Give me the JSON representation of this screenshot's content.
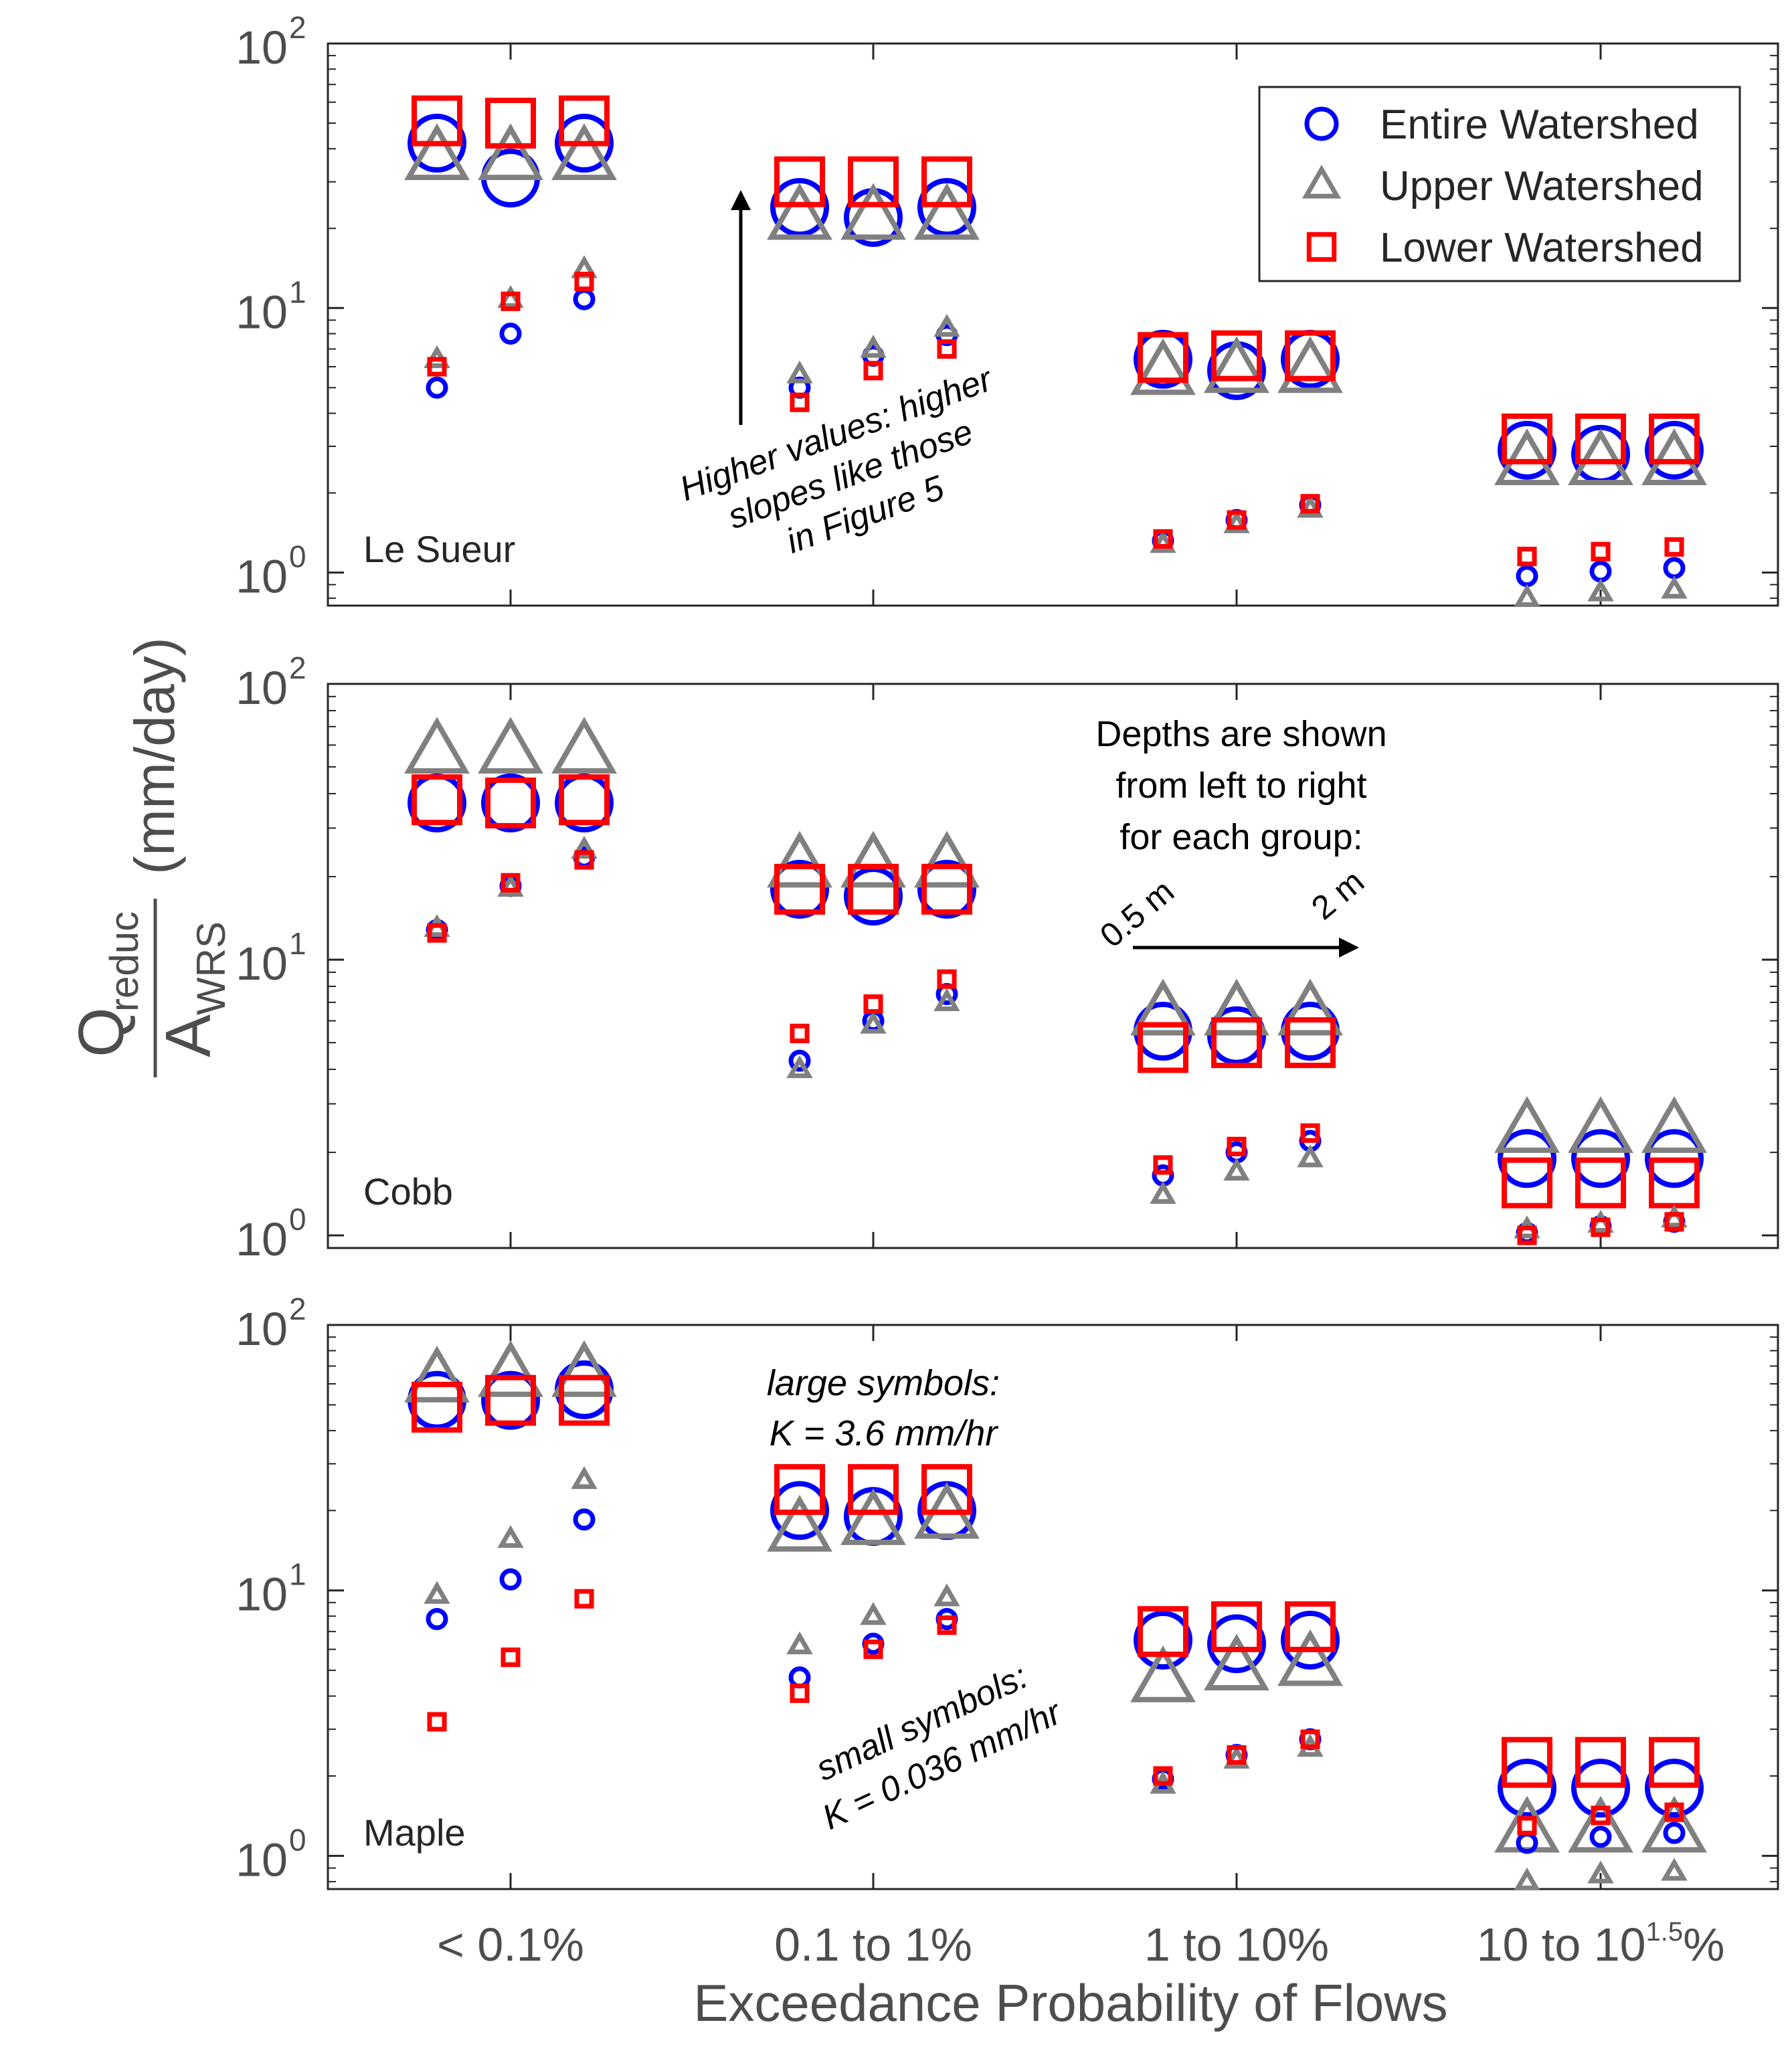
{
  "figure": {
    "xlabel": "Exceedance Probability of Flows",
    "ylabel": {
      "numerator_main": "Q",
      "numerator_sub": "reduc",
      "denominator_main": "A",
      "denominator_sub": "WRS",
      "units": "(mm/day)"
    }
  },
  "legend": {
    "items": [
      {
        "label": "Entire Watershed",
        "marker": "circle",
        "color": "#0000ff"
      },
      {
        "label": "Upper Watershed",
        "marker": "triangle",
        "color": "#808080"
      },
      {
        "label": "Lower Watershed",
        "marker": "square",
        "color": "#ff0000"
      }
    ]
  },
  "annotations": {
    "higher_values": [
      "Higher values: higher",
      "slopes like those",
      "in Figure 5"
    ],
    "depths": [
      "Depths are shown",
      "from left to right",
      "for each group:"
    ],
    "depth_start": "0.5 m",
    "depth_end": "2 m",
    "large_symbols": [
      "large symbols:",
      "K = 3.6 mm/hr"
    ],
    "small_symbols": [
      "small symbols:",
      "K = 0.036 mm/hr"
    ]
  },
  "colors": {
    "entire": "#0000ff",
    "upper": "#808080",
    "lower": "#ff0000",
    "axis": "#262626",
    "tick_label": "#4d4d4d"
  },
  "chart_data": [
    {
      "type": "scatter",
      "title": "Le Sueur",
      "yscale": "log",
      "ylim": [
        0.75,
        100
      ],
      "y_ticks": [
        {
          "base": "10",
          "exp": "0"
        },
        {
          "base": "10",
          "exp": "1"
        },
        {
          "base": "10",
          "exp": "2"
        }
      ],
      "categories": [
        {
          "label": "< 0.1%"
        },
        {
          "label": "0.1 to 1%"
        },
        {
          "label": "1 to 10%"
        },
        {
          "label": "10 to 10",
          "sup": "1.5",
          "suffix": "%"
        }
      ],
      "depths_m": [
        0.5,
        1.25,
        2
      ],
      "series": [
        {
          "name": "Entire Watershed",
          "k": "3.6 mm/hr",
          "values": [
            [
              42,
              31,
              42
            ],
            [
              24,
              22,
              24
            ],
            [
              6.4,
              5.8,
              6.4
            ],
            [
              2.9,
              2.8,
              2.9
            ]
          ]
        },
        {
          "name": "Entire Watershed",
          "k": "0.036 mm/hr",
          "values": [
            [
              5.0,
              8.0,
              10.8
            ],
            [
              5.0,
              6.6,
              7.9
            ],
            [
              1.32,
              1.58,
              1.8
            ],
            [
              0.97,
              1.01,
              1.04
            ]
          ]
        },
        {
          "name": "Upper Watershed",
          "k": "3.6 mm/hr",
          "values": [
            [
              37,
              37,
              37
            ],
            [
              22,
              22,
              22
            ],
            [
              5.7,
              5.8,
              5.8
            ],
            [
              2.6,
              2.6,
              2.6
            ]
          ]
        },
        {
          "name": "Upper Watershed",
          "k": "0.036 mm/hr",
          "values": [
            [
              6.4,
              10.8,
              14.0
            ],
            [
              5.6,
              7.0,
              8.4
            ],
            [
              1.28,
              1.52,
              1.74
            ],
            [
              0.8,
              0.84,
              0.86
            ]
          ]
        },
        {
          "name": "Lower Watershed",
          "k": "3.6 mm/hr",
          "values": [
            [
              51,
              50,
              51
            ],
            [
              30,
              30,
              30
            ],
            [
              6.5,
              6.6,
              6.6
            ],
            [
              3.2,
              3.2,
              3.2
            ]
          ]
        },
        {
          "name": "Lower Watershed",
          "k": "0.036 mm/hr",
          "values": [
            [
              6.0,
              10.6,
              12.6
            ],
            [
              4.4,
              5.8,
              7.0
            ],
            [
              1.34,
              1.58,
              1.82
            ],
            [
              1.15,
              1.2,
              1.25
            ]
          ]
        }
      ]
    },
    {
      "type": "scatter",
      "title": "Cobb",
      "yscale": "log",
      "ylim": [
        0.9,
        100
      ],
      "y_ticks": [
        {
          "base": "10",
          "exp": "0"
        },
        {
          "base": "10",
          "exp": "1"
        },
        {
          "base": "10",
          "exp": "2"
        }
      ],
      "categories": [
        {
          "label": "< 0.1%"
        },
        {
          "label": "0.1 to 1%"
        },
        {
          "label": "1 to 10%"
        },
        {
          "label": "10 to 10",
          "sup": "1.5",
          "suffix": "%"
        }
      ],
      "depths_m": [
        0.5,
        1.25,
        2
      ],
      "series": [
        {
          "name": "Entire Watershed",
          "k": "3.6 mm/hr",
          "values": [
            [
              37,
              37,
              37
            ],
            [
              18,
              17,
              18
            ],
            [
              5.5,
              5.3,
              5.5
            ],
            [
              1.9,
              1.9,
              1.9
            ]
          ]
        },
        {
          "name": "Entire Watershed",
          "k": "0.036 mm/hr",
          "values": [
            [
              12.8,
              18.5,
              23.5
            ],
            [
              4.3,
              6.0,
              7.5
            ],
            [
              1.65,
              2.0,
              2.2
            ],
            [
              1.02,
              1.08,
              1.12
            ]
          ]
        },
        {
          "name": "Upper Watershed",
          "k": "3.6 mm/hr",
          "values": [
            [
              57,
              57,
              57
            ],
            [
              22,
              22,
              22
            ],
            [
              6.4,
              6.4,
              6.4
            ],
            [
              2.4,
              2.4,
              2.4
            ]
          ]
        },
        {
          "name": "Upper Watershed",
          "k": "0.036 mm/hr",
          "values": [
            [
              13.0,
              18.2,
              25.0
            ],
            [
              4.0,
              5.8,
              7.0
            ],
            [
              1.4,
              1.7,
              1.9
            ],
            [
              1.05,
              1.1,
              1.15
            ]
          ]
        },
        {
          "name": "Lower Watershed",
          "k": "3.6 mm/hr",
          "values": [
            [
              38,
              37,
              38
            ],
            [
              18,
              18,
              18
            ],
            [
              4.8,
              5.0,
              5.0
            ],
            [
              1.55,
              1.55,
              1.55
            ]
          ]
        },
        {
          "name": "Lower Watershed",
          "k": "0.036 mm/hr",
          "values": [
            [
              12.5,
              19.0,
              23.0
            ],
            [
              5.4,
              6.9,
              8.5
            ],
            [
              1.8,
              2.1,
              2.35
            ],
            [
              1.0,
              1.07,
              1.12
            ]
          ]
        }
      ]
    },
    {
      "type": "scatter",
      "title": "Maple",
      "yscale": "log",
      "ylim": [
        0.75,
        100
      ],
      "y_ticks": [
        {
          "base": "10",
          "exp": "0"
        },
        {
          "base": "10",
          "exp": "1"
        },
        {
          "base": "10",
          "exp": "2"
        }
      ],
      "categories": [
        {
          "label": "< 0.1%"
        },
        {
          "label": "0.1 to 1%"
        },
        {
          "label": "1 to 10%"
        },
        {
          "label": "10 to 10",
          "sup": "1.5",
          "suffix": "%"
        }
      ],
      "depths_m": [
        0.5,
        1.25,
        2
      ],
      "series": [
        {
          "name": "Entire Watershed",
          "k": "3.6 mm/hr",
          "values": [
            [
              52,
              52,
              57
            ],
            [
              20,
              19,
              20
            ],
            [
              6.5,
              6.3,
              6.5
            ],
            [
              1.8,
              1.8,
              1.8
            ]
          ]
        },
        {
          "name": "Entire Watershed",
          "k": "0.036 mm/hr",
          "values": [
            [
              7.8,
              11.0,
              18.5
            ],
            [
              4.7,
              6.3,
              7.8
            ],
            [
              1.95,
              2.4,
              2.75
            ],
            [
              1.12,
              1.18,
              1.22
            ]
          ]
        },
        {
          "name": "Upper Watershed",
          "k": "3.6 mm/hr",
          "values": [
            [
              62,
              65,
              65
            ],
            [
              17,
              18,
              19
            ],
            [
              4.6,
              5.1,
              5.3
            ],
            [
              1.25,
              1.25,
              1.25
            ]
          ]
        },
        {
          "name": "Upper Watershed",
          "k": "0.036 mm/hr",
          "values": [
            [
              9.6,
              15.6,
              26.0
            ],
            [
              6.2,
              8.0,
              9.4
            ],
            [
              1.85,
              2.3,
              2.55
            ],
            [
              0.8,
              0.85,
              0.87
            ]
          ]
        },
        {
          "name": "Lower Watershed",
          "k": "3.6 mm/hr",
          "values": [
            [
              49,
              52,
              52
            ],
            [
              24,
              24,
              24
            ],
            [
              7.0,
              7.3,
              7.3
            ],
            [
              2.25,
              2.25,
              2.25
            ]
          ]
        },
        {
          "name": "Lower Watershed",
          "k": "0.036 mm/hr",
          "values": [
            [
              3.2,
              5.6,
              9.3
            ],
            [
              4.1,
              6.0,
              7.4
            ],
            [
              2.0,
              2.4,
              2.75
            ],
            [
              1.3,
              1.42,
              1.46
            ]
          ]
        }
      ]
    }
  ]
}
